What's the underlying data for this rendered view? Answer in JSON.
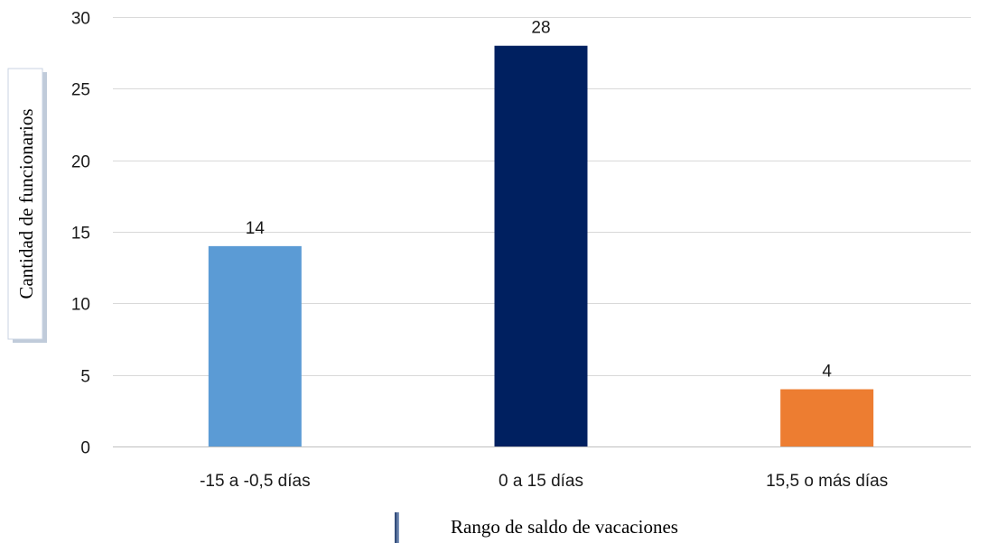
{
  "chart_data": {
    "type": "bar",
    "title": "",
    "xlabel": "Rango de saldo de vacaciones",
    "ylabel": "Cantidad de funcionarios",
    "categories": [
      "-15 a -0,5 días",
      "0 a 15 días",
      "15,5 o más días"
    ],
    "values": [
      14,
      28,
      4
    ],
    "data_labels": [
      "14",
      "28",
      "4"
    ],
    "bar_colors": [
      "#5b9bd5",
      "#002060",
      "#ed7d31"
    ],
    "ylim": [
      0,
      30
    ],
    "yticks": [
      0,
      5,
      10,
      15,
      20,
      25,
      30
    ],
    "grid": true,
    "legend": "none"
  }
}
